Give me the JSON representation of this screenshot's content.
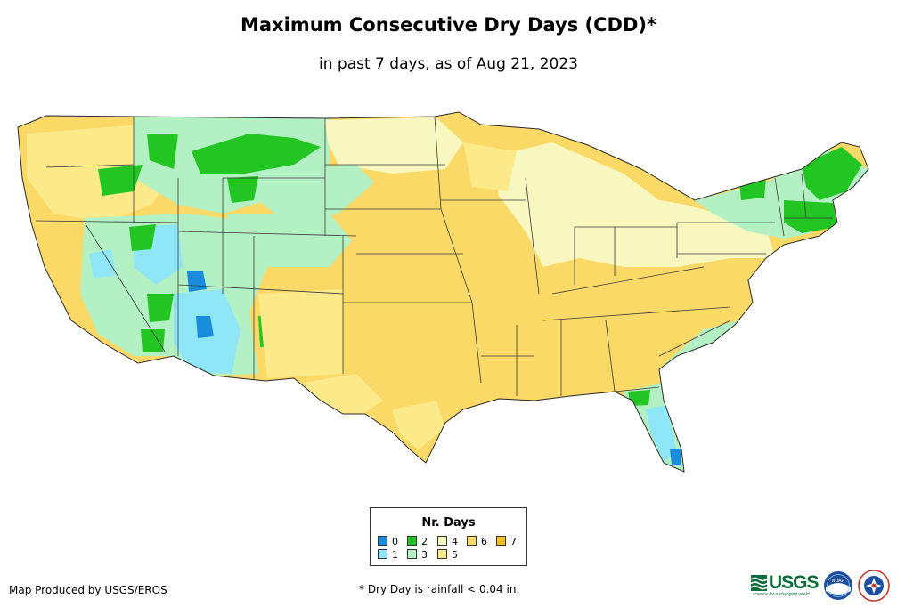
{
  "title": "Maximum Consecutive Dry Days (CDD)*",
  "subtitle": "in past 7 days, as of Aug 21, 2023",
  "legend": {
    "title": "Nr. Days",
    "items": [
      {
        "label": "0",
        "color": "#1a8ce0"
      },
      {
        "label": "1",
        "color": "#8fe6f7"
      },
      {
        "label": "2",
        "color": "#22c522"
      },
      {
        "label": "3",
        "color": "#b3f0c3"
      },
      {
        "label": "4",
        "color": "#f8f7c0"
      },
      {
        "label": "5",
        "color": "#fbe98a"
      },
      {
        "label": "6",
        "color": "#fbd966"
      },
      {
        "label": "7",
        "color": "#fbbe1e"
      }
    ]
  },
  "credit": "Map Produced by USGS/EROS",
  "footnote": "* Dry Day is rainfall < 0.04 in.",
  "logos": {
    "usgs_text": "USGS",
    "usgs_tagline": "science for a changing world",
    "noaa_text": "NOAA"
  }
}
